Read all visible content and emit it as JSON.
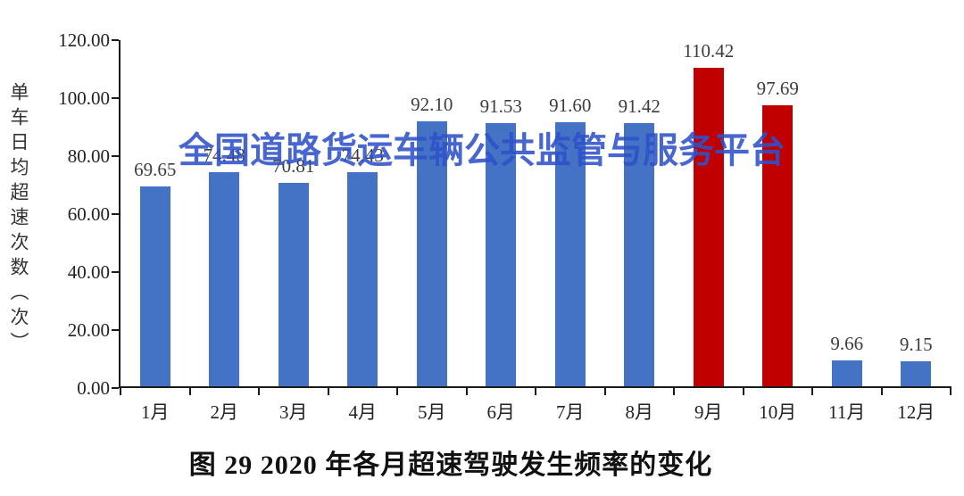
{
  "watermark": {
    "text": "全国道路货运车辆公共监管与服务平台",
    "color": "#2F51C9"
  },
  "caption": "图 29 2020 年各月超速驾驶发生频率的变化",
  "y_axis": {
    "title": "单车日均超速次数（次）",
    "tick_labels": [
      "120.00",
      "100.00",
      "80.00",
      "60.00",
      "40.00",
      "20.00",
      "0.00"
    ]
  },
  "colors": {
    "bar_blue": "#4472C4",
    "bar_red": "#C00000",
    "axis": "#1a1a1a",
    "value_label": "#3d3d3d"
  },
  "chart_data": {
    "type": "bar",
    "title": "图 29 2020 年各月超速驾驶发生频率的变化",
    "xlabel": "",
    "ylabel": "单车日均超速次数（次）",
    "ylim": [
      0,
      120
    ],
    "ytick_step": 20,
    "grid": false,
    "legend": false,
    "categories": [
      "1月",
      "2月",
      "3月",
      "4月",
      "5月",
      "6月",
      "7月",
      "8月",
      "9月",
      "10月",
      "11月",
      "12月"
    ],
    "values": [
      69.65,
      74.48,
      70.81,
      74.43,
      92.1,
      91.53,
      91.6,
      91.42,
      110.42,
      97.69,
      9.66,
      9.15
    ],
    "value_labels": [
      "69.65",
      "74.48",
      "70.81",
      "74.43",
      "92.10",
      "91.53",
      "91.60",
      "91.42",
      "110.42",
      "97.69",
      "9.66",
      "9.15"
    ],
    "bar_colors": [
      "#4472C4",
      "#4472C4",
      "#4472C4",
      "#4472C4",
      "#4472C4",
      "#4472C4",
      "#4472C4",
      "#4472C4",
      "#C00000",
      "#C00000",
      "#4472C4",
      "#4472C4"
    ]
  }
}
